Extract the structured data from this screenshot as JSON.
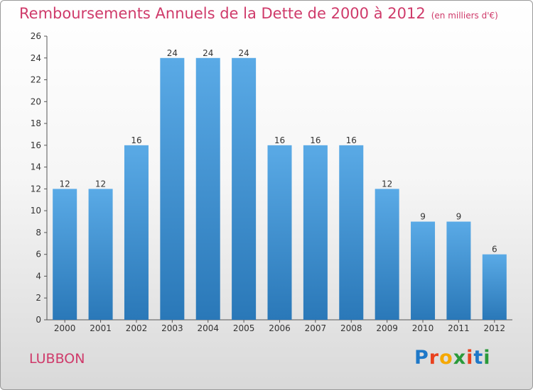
{
  "header": {
    "title": "Remboursements Annuels de la Dette de 2000 à 2012",
    "subtitle": "(en milliers d'€)"
  },
  "footer": {
    "commune": "LUBBON",
    "brand": "Proxiti",
    "brand_colors": [
      "#1e78c8",
      "#e9411e",
      "#f5a800",
      "#2a9a3a",
      "#e9411e",
      "#1e78c8",
      "#2a9a3a"
    ]
  },
  "colors": {
    "title": "#cf3a6a",
    "bar_top": "#5aaae6",
    "bar_bottom": "#2a78b8"
  },
  "chart_data": {
    "type": "bar",
    "title": "Remboursements Annuels de la Dette de 2000 à 2012",
    "subtitle": "(en milliers d'€)",
    "xlabel": "",
    "ylabel": "",
    "categories": [
      "2000",
      "2001",
      "2002",
      "2003",
      "2004",
      "2005",
      "2006",
      "2007",
      "2008",
      "2009",
      "2010",
      "2011",
      "2012"
    ],
    "values": [
      12,
      12,
      16,
      24,
      24,
      24,
      16,
      16,
      16,
      12,
      9,
      9,
      6
    ],
    "data_labels": [
      "12",
      "12",
      "16",
      "24",
      "24",
      "24",
      "16",
      "16",
      "16",
      "12",
      "9",
      "9",
      "6"
    ],
    "ylim": [
      0,
      26
    ],
    "yticks": [
      0,
      2,
      4,
      6,
      8,
      10,
      12,
      14,
      16,
      18,
      20,
      22,
      24,
      26
    ],
    "grid": false,
    "legend": "none"
  }
}
